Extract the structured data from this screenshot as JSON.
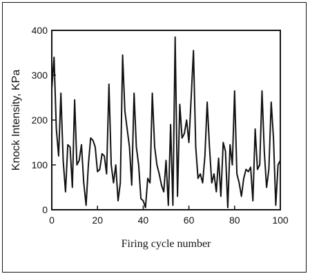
{
  "chart_data": {
    "type": "line",
    "title": "",
    "xlabel": "Firing cycle number",
    "ylabel": "Knock Intensity, KPa",
    "xlim": [
      0,
      100
    ],
    "ylim": [
      0,
      400
    ],
    "x_ticks": [
      0,
      20,
      40,
      60,
      80,
      100
    ],
    "y_ticks": [
      0,
      100,
      200,
      300,
      400
    ],
    "grid": false,
    "series": [
      {
        "values": [
          [
            0,
            270
          ],
          [
            1,
            340
          ],
          [
            2,
            180
          ],
          [
            3,
            120
          ],
          [
            4,
            260
          ],
          [
            5,
            110
          ],
          [
            6,
            40
          ],
          [
            7,
            145
          ],
          [
            8,
            140
          ],
          [
            9,
            50
          ],
          [
            10,
            245
          ],
          [
            11,
            100
          ],
          [
            12,
            110
          ],
          [
            13,
            145
          ],
          [
            14,
            60
          ],
          [
            15,
            10
          ],
          [
            16,
            100
          ],
          [
            17,
            160
          ],
          [
            18,
            155
          ],
          [
            19,
            140
          ],
          [
            20,
            85
          ],
          [
            21,
            90
          ],
          [
            22,
            125
          ],
          [
            23,
            120
          ],
          [
            24,
            80
          ],
          [
            25,
            280
          ],
          [
            26,
            100
          ],
          [
            27,
            60
          ],
          [
            28,
            100
          ],
          [
            29,
            20
          ],
          [
            30,
            60
          ],
          [
            31,
            345
          ],
          [
            32,
            220
          ],
          [
            33,
            180
          ],
          [
            34,
            140
          ],
          [
            35,
            55
          ],
          [
            36,
            260
          ],
          [
            37,
            140
          ],
          [
            38,
            100
          ],
          [
            39,
            25
          ],
          [
            40,
            20
          ],
          [
            41,
            5
          ],
          [
            42,
            70
          ],
          [
            43,
            60
          ],
          [
            44,
            260
          ],
          [
            45,
            140
          ],
          [
            46,
            100
          ],
          [
            47,
            80
          ],
          [
            48,
            55
          ],
          [
            49,
            40
          ],
          [
            50,
            110
          ],
          [
            51,
            10
          ],
          [
            52,
            190
          ],
          [
            53,
            10
          ],
          [
            54,
            385
          ],
          [
            55,
            30
          ],
          [
            56,
            235
          ],
          [
            57,
            160
          ],
          [
            58,
            170
          ],
          [
            59,
            200
          ],
          [
            60,
            150
          ],
          [
            61,
            250
          ],
          [
            62,
            355
          ],
          [
            63,
            140
          ],
          [
            64,
            70
          ],
          [
            65,
            80
          ],
          [
            66,
            60
          ],
          [
            67,
            120
          ],
          [
            68,
            240
          ],
          [
            69,
            140
          ],
          [
            70,
            60
          ],
          [
            71,
            80
          ],
          [
            72,
            40
          ],
          [
            73,
            115
          ],
          [
            74,
            30
          ],
          [
            75,
            150
          ],
          [
            76,
            130
          ],
          [
            77,
            5
          ],
          [
            78,
            145
          ],
          [
            79,
            100
          ],
          [
            80,
            265
          ],
          [
            81,
            80
          ],
          [
            82,
            60
          ],
          [
            83,
            30
          ],
          [
            84,
            70
          ],
          [
            85,
            90
          ],
          [
            86,
            85
          ],
          [
            87,
            95
          ],
          [
            88,
            20
          ],
          [
            89,
            180
          ],
          [
            90,
            90
          ],
          [
            91,
            100
          ],
          [
            92,
            265
          ],
          [
            93,
            130
          ],
          [
            94,
            50
          ],
          [
            95,
            90
          ],
          [
            96,
            240
          ],
          [
            97,
            160
          ],
          [
            98,
            10
          ],
          [
            99,
            100
          ],
          [
            100,
            110
          ]
        ]
      }
    ]
  }
}
